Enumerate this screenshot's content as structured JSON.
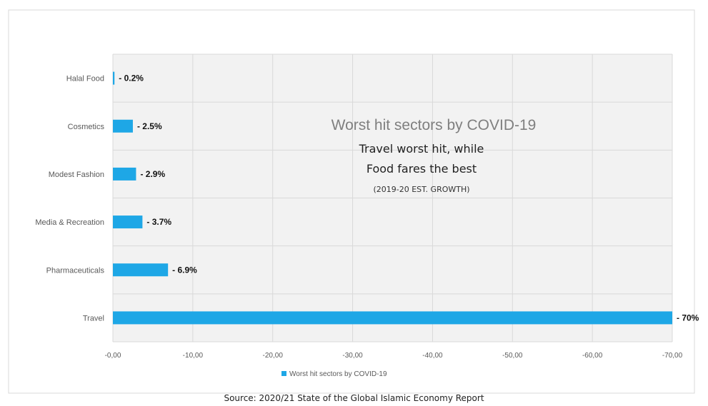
{
  "chart_data": {
    "type": "bar",
    "orientation": "horizontal",
    "categories": [
      "Halal Food",
      "Cosmetics",
      "Modest Fashion",
      "Media & Recreation",
      "Pharmaceuticals",
      "Travel"
    ],
    "series": [
      {
        "name": "Worst hit sectors by COVID-19",
        "values": [
          -0.2,
          -2.5,
          -2.9,
          -3.7,
          -6.9,
          -70
        ]
      }
    ],
    "data_labels": [
      "- 0.2%",
      "- 2.5%",
      "- 2.9%",
      "- 3.7%",
      "- 6.9%",
      "- 70%"
    ],
    "xlim": [
      0,
      -70
    ],
    "x_ticks": [
      0,
      -10,
      -20,
      -30,
      -40,
      -50,
      -60,
      -70
    ],
    "x_tick_labels": [
      "-0,00",
      "-10,00",
      "-20,00",
      "-30,00",
      "-40,00",
      "-50,00",
      "-60,00",
      "-70,00"
    ],
    "grid": true,
    "legend_position": "bottom",
    "color": "#1ea7e6",
    "annotation": {
      "title": "Worst hit sectors by COVID-19",
      "line1": "Travel worst hit, while",
      "line2": "Food fares the best",
      "line3": "(2019-20 EST. GROWTH)"
    }
  },
  "source": "Source: 2020/21 State of the Global Islamic Economy Report"
}
